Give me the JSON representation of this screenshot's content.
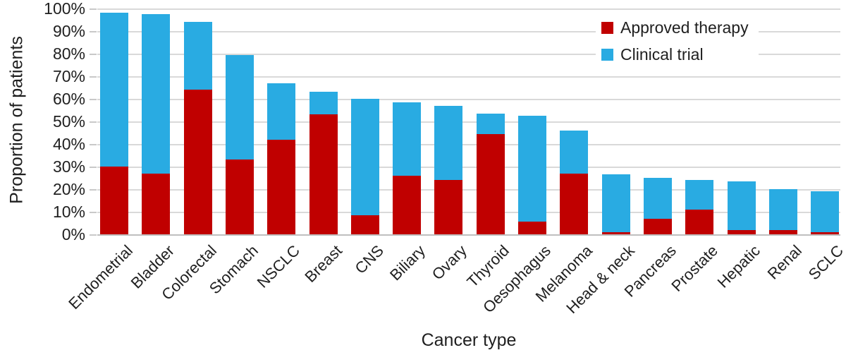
{
  "chart_data": {
    "type": "bar",
    "stacked": true,
    "title": "",
    "xlabel": "Cancer type",
    "ylabel": "Proportion of patients",
    "categories": [
      "Endometrial",
      "Bladder",
      "Colorectal",
      "Stomach",
      "NSCLC",
      "Breast",
      "CNS",
      "Biliary",
      "Ovary",
      "Thyroid",
      "Oesophagus",
      "Melanoma",
      "Head & neck",
      "Pancreas",
      "Prostate",
      "Hepatic",
      "Renal",
      "SCLC"
    ],
    "series": [
      {
        "name": "Approved therapy",
        "color": "#c00000",
        "values": [
          30,
          27,
          64,
          33,
          42,
          53,
          8.5,
          26,
          24,
          44.5,
          5.5,
          27,
          1,
          7,
          11,
          2,
          2,
          1
        ]
      },
      {
        "name": "Clinical trial",
        "color": "#29abe2",
        "values": [
          68,
          70.5,
          30,
          46.5,
          25,
          10,
          51.5,
          32.5,
          33,
          9,
          47,
          19,
          25.5,
          18,
          13,
          21.5,
          18,
          18
        ]
      }
    ],
    "stack_totals": [
      98,
      97.5,
      94,
      79.5,
      67,
      63,
      60,
      58.5,
      57,
      53.5,
      52.5,
      46,
      26.5,
      25,
      24,
      23.5,
      20,
      19
    ],
    "y_ticks": [
      "0%",
      "10%",
      "20%",
      "30%",
      "40%",
      "50%",
      "60%",
      "70%",
      "80%",
      "90%",
      "100%"
    ],
    "ylim": [
      0,
      100
    ],
    "y_tick_step": 10,
    "grid": true,
    "legend_position": "top-right"
  },
  "colors": {
    "approved_therapy": "#c00000",
    "clinical_trial": "#29abe2",
    "gridline": "#d9d9d9",
    "axis_line": "#bfbfbf",
    "text": "#1f1f1f",
    "background": "#ffffff"
  }
}
